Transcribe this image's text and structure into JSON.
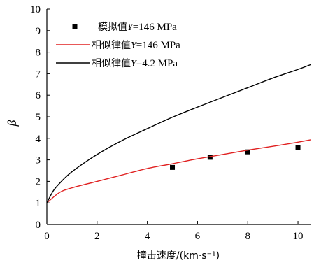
{
  "chart_data": {
    "type": "line",
    "title": "",
    "xlabel": "撞击速度/(km·s⁻¹)",
    "ylabel": "β",
    "xlim": [
      0,
      10.5
    ],
    "ylim": [
      0,
      10
    ],
    "xticks": [
      "0",
      "2",
      "4",
      "6",
      "8",
      "10"
    ],
    "yticks": [
      "0",
      "1",
      "2",
      "3",
      "4",
      "5",
      "6",
      "7",
      "8",
      "9",
      "10"
    ],
    "grid": false,
    "legend_position": "top-left",
    "legend": [
      {
        "prefix": "模拟值",
        "var": "Y",
        "suffix": "=146 MPa"
      },
      {
        "prefix": "相似律值",
        "var": "Y",
        "suffix": "=146 MPa"
      },
      {
        "prefix": "相似律值",
        "var": "Y",
        "suffix": "=4.2 MPa"
      }
    ],
    "series": [
      {
        "kind": "scatter",
        "color": "#000000",
        "x": [
          5,
          6.5,
          8,
          10
        ],
        "y": [
          2.65,
          3.12,
          3.37,
          3.58
        ]
      },
      {
        "kind": "line",
        "color": "#e02020",
        "x": [
          0,
          0.5,
          1,
          2,
          3,
          4,
          5,
          6,
          7,
          8,
          9,
          10,
          10.5
        ],
        "y": [
          1.0,
          1.48,
          1.7,
          2.0,
          2.3,
          2.6,
          2.82,
          3.05,
          3.25,
          3.45,
          3.63,
          3.82,
          3.93
        ]
      },
      {
        "kind": "line",
        "color": "#000000",
        "x": [
          0,
          0.25,
          0.5,
          1,
          2,
          3,
          4,
          5,
          6,
          7,
          8,
          9,
          10,
          10.5
        ],
        "y": [
          1.0,
          1.55,
          1.9,
          2.45,
          3.25,
          3.9,
          4.45,
          4.98,
          5.45,
          5.9,
          6.35,
          6.8,
          7.2,
          7.42
        ]
      }
    ]
  }
}
